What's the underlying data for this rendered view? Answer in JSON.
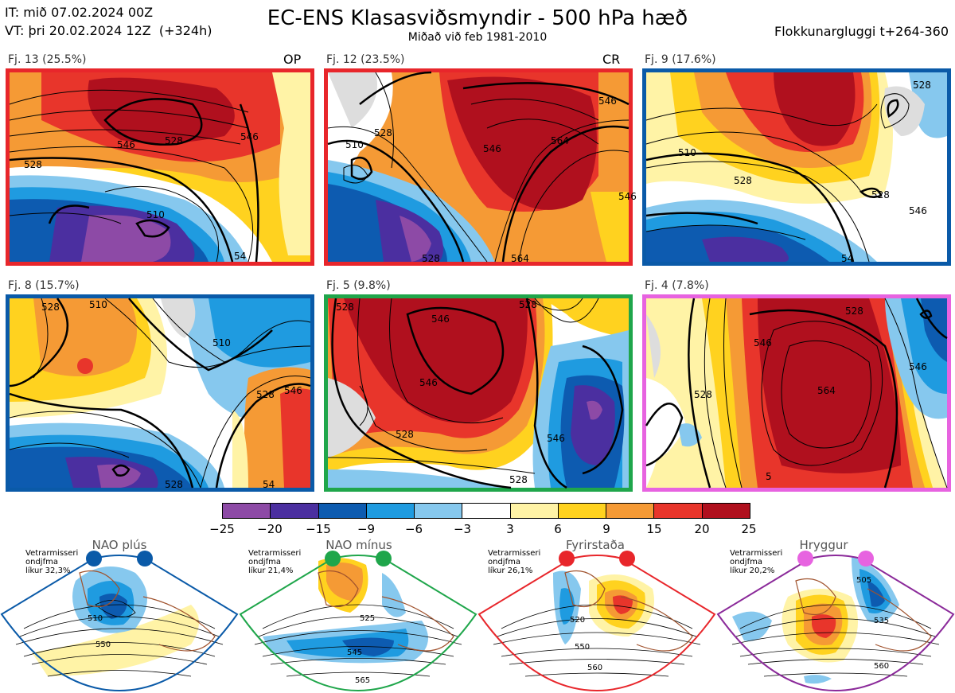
{
  "header": {
    "it_line": "IT: mið 07.02.2024 00Z",
    "vt_line": "VT: þri 20.02.2024 12Z  (+324h)",
    "title": "EC-ENS Klasasviðsmyndir - 500 hPa hæð",
    "subtitle": "Miðað við feb 1981-2010",
    "window": "Flokkunargluggi t+264-360"
  },
  "panels": [
    {
      "label": "Fj. 13 (25.5%)",
      "tag": "OP",
      "border": "#e8262b",
      "contours": [
        "546",
        "528",
        "510",
        "528",
        "54",
        "546"
      ]
    },
    {
      "label": "Fj. 12 (23.5%)",
      "tag": "CR",
      "border": "#e8262b",
      "contours": [
        "546",
        "564",
        "510",
        "528",
        "528",
        "546",
        "564",
        "546"
      ]
    },
    {
      "label": "Fj. 9 (17.6%)",
      "tag": "",
      "border": "#0a5aa8",
      "contours": [
        "528",
        "510",
        "528",
        "528",
        "546",
        "54"
      ]
    },
    {
      "label": "Fj. 8 (15.7%)",
      "tag": "",
      "border": "#0a5aa8",
      "contours": [
        "528",
        "510",
        "510",
        "528",
        "546",
        "528",
        "54"
      ]
    },
    {
      "label": "Fj. 5 (9.8%)",
      "tag": "",
      "border": "#1fa64b",
      "contours": [
        "528",
        "546",
        "528",
        "546",
        "528",
        "528",
        "546"
      ]
    },
    {
      "label": "Fj. 4 (7.8%)",
      "tag": "",
      "border": "#e763e0",
      "contours": [
        "528",
        "546",
        "564",
        "528",
        "546",
        "5"
      ]
    }
  ],
  "colorbar": {
    "ticks": [
      "−25",
      "−20",
      "−15",
      "−9",
      "−6",
      "−3",
      "3",
      "6",
      "9",
      "15",
      "20",
      "25"
    ],
    "colors": [
      "#8d4aa6",
      "#4b2fa0",
      "#0d5bb0",
      "#1f9be0",
      "#86c8ee",
      "#ffffff",
      "#fff3a6",
      "#ffd21f",
      "#f59a35",
      "#e8352b",
      "#b0101e"
    ]
  },
  "regimes": [
    {
      "name": "NAO plús",
      "info": "Vetrarmisseri\nondjfma\nlíkur 32,3%",
      "color": "#0a5aa8",
      "labels": [
        "510",
        "550"
      ]
    },
    {
      "name": "NAO mínus",
      "info": "Vetrarmisseri\nondjfma\nlíkur 21,4%",
      "color": "#1fa64b",
      "labels": [
        "525",
        "545",
        "565"
      ]
    },
    {
      "name": "Fyrirstaða",
      "info": "Vetrarmisseri\nondjfma\nlíkur 26,1%",
      "color": "#e8262b",
      "labels": [
        "520",
        "550",
        "560"
      ]
    },
    {
      "name": "Hryggur",
      "info": "Vetrarmisseri\nondjfma\nlíkur 20,2%",
      "color": "#8b2a9a",
      "dot": "#e763e0",
      "labels": [
        "505",
        "535",
        "560"
      ]
    }
  ]
}
